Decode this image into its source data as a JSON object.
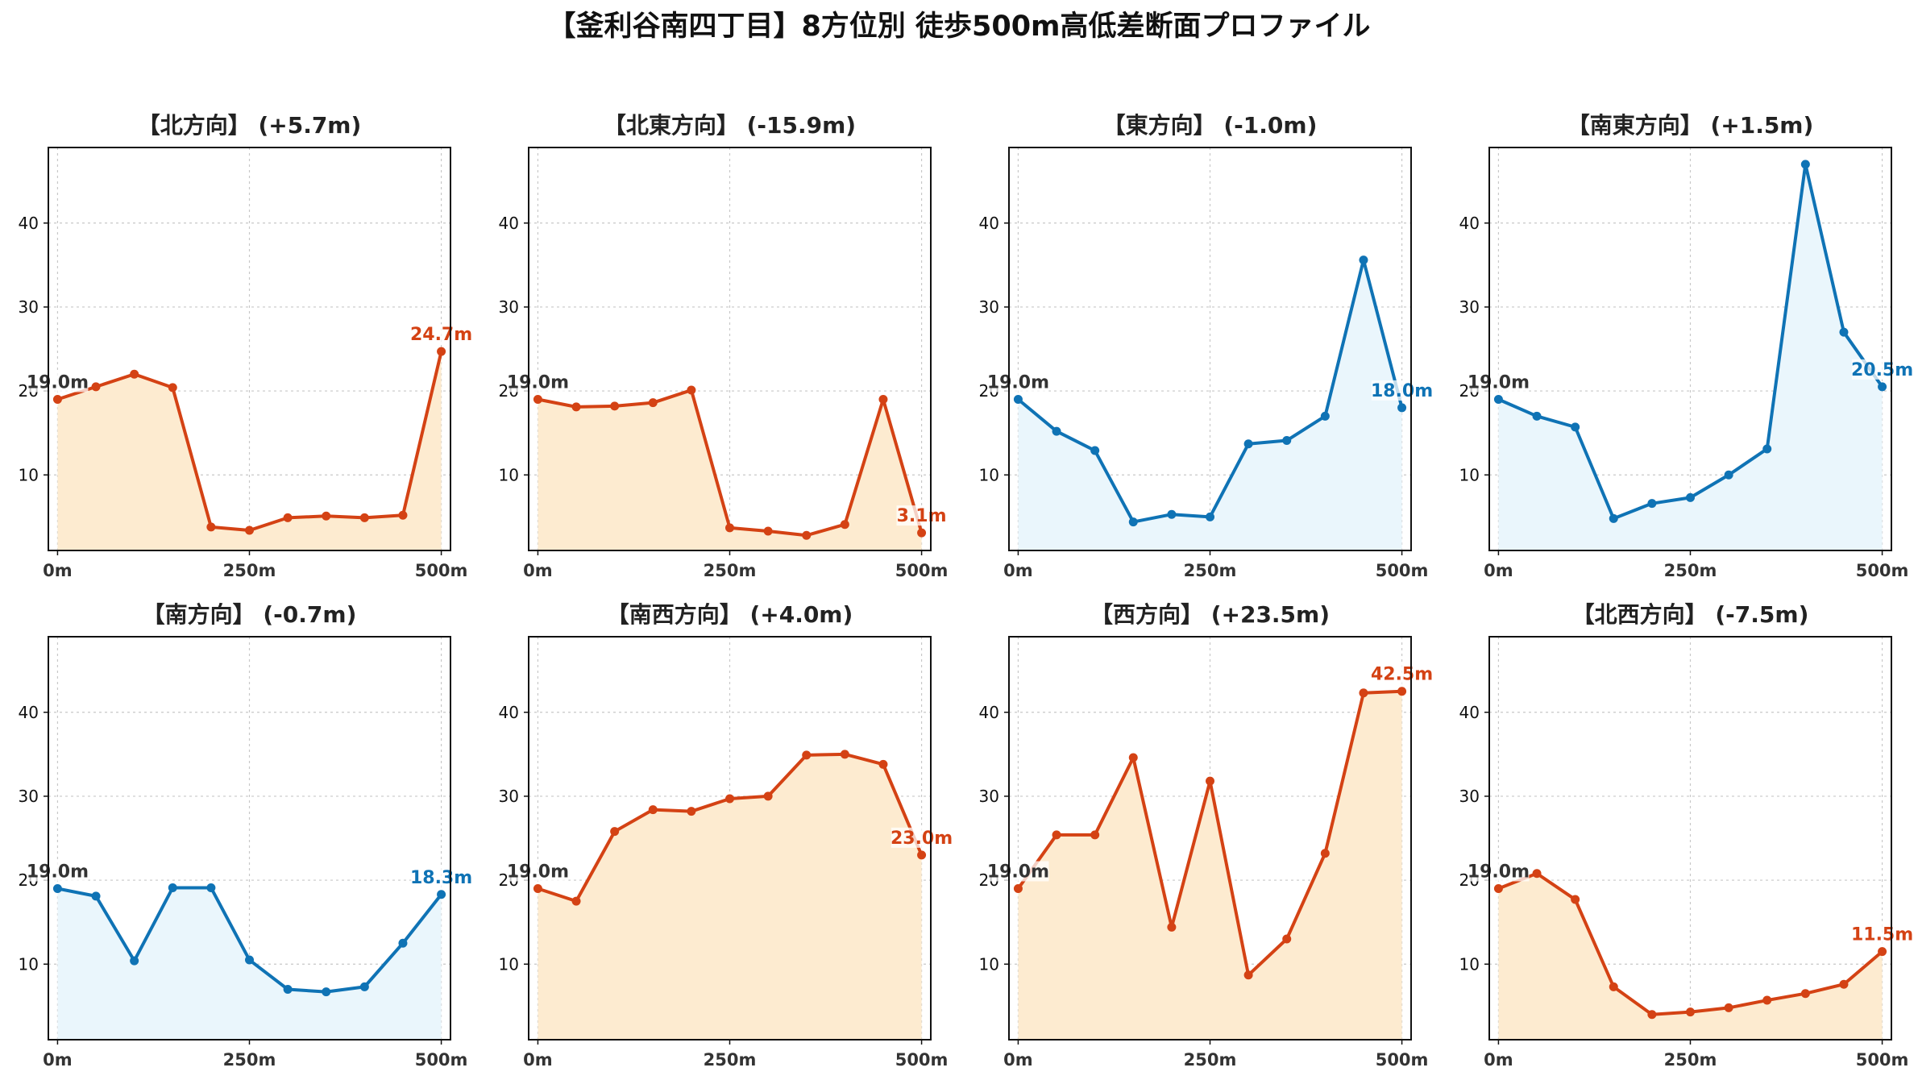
{
  "title": "【釜利谷南四丁目】8方位別 徒歩500m高低差断面プロファイル",
  "colors": {
    "up_line": "#d44214",
    "up_fill": "#fdebd0",
    "down_line": "#0f73b5",
    "down_fill": "#eaf6fc",
    "start_label": "#333333"
  },
  "chart_data": [
    {
      "type": "line",
      "title": "【北方向】 (+5.7m)",
      "trend": "up",
      "x": [
        0,
        50,
        100,
        150,
        200,
        250,
        300,
        350,
        400,
        450,
        500
      ],
      "y": [
        19.0,
        20.5,
        22.0,
        20.4,
        3.8,
        3.4,
        4.9,
        5.1,
        4.9,
        5.2,
        24.7
      ],
      "start_label": "19.0m",
      "end_label": "24.7m",
      "xticks": [
        "0m",
        "250m",
        "500m"
      ],
      "yticks": [
        "10",
        "20",
        "30",
        "40"
      ],
      "xlim": [
        -12,
        512
      ],
      "ylim": [
        1,
        49
      ],
      "grid": true
    },
    {
      "type": "line",
      "title": "【北東方向】 (-15.9m)",
      "trend": "up",
      "x": [
        0,
        50,
        100,
        150,
        200,
        250,
        300,
        350,
        400,
        450,
        500
      ],
      "y": [
        19.0,
        18.1,
        18.2,
        18.6,
        20.1,
        3.7,
        3.3,
        2.8,
        4.1,
        19.0,
        3.1
      ],
      "start_label": "19.0m",
      "end_label": "3.1m",
      "xticks": [
        "0m",
        "250m",
        "500m"
      ],
      "yticks": [
        "10",
        "20",
        "30",
        "40"
      ],
      "xlim": [
        -12,
        512
      ],
      "ylim": [
        1,
        49
      ],
      "grid": true
    },
    {
      "type": "line",
      "title": "【東方向】 (-1.0m)",
      "trend": "down",
      "x": [
        0,
        50,
        100,
        150,
        200,
        250,
        300,
        350,
        400,
        450,
        500
      ],
      "y": [
        19.0,
        15.2,
        12.9,
        4.4,
        5.3,
        5.0,
        13.7,
        14.1,
        17.0,
        35.6,
        18.0
      ],
      "start_label": "19.0m",
      "end_label": "18.0m",
      "xticks": [
        "0m",
        "250m",
        "500m"
      ],
      "yticks": [
        "10",
        "20",
        "30",
        "40"
      ],
      "xlim": [
        -12,
        512
      ],
      "ylim": [
        1,
        49
      ],
      "grid": true
    },
    {
      "type": "line",
      "title": "【南東方向】 (+1.5m)",
      "trend": "down",
      "x": [
        0,
        50,
        100,
        150,
        200,
        250,
        300,
        350,
        400,
        450,
        500
      ],
      "y": [
        19.0,
        17.0,
        15.7,
        4.8,
        6.6,
        7.3,
        10.0,
        13.1,
        47.0,
        27.0,
        20.5
      ],
      "start_label": "19.0m",
      "end_label": "20.5m",
      "xticks": [
        "0m",
        "250m",
        "500m"
      ],
      "yticks": [
        "10",
        "20",
        "30",
        "40"
      ],
      "xlim": [
        -12,
        512
      ],
      "ylim": [
        1,
        49
      ],
      "grid": true
    },
    {
      "type": "line",
      "title": "【南方向】 (-0.7m)",
      "trend": "down",
      "x": [
        0,
        50,
        100,
        150,
        200,
        250,
        300,
        350,
        400,
        450,
        500
      ],
      "y": [
        19.0,
        18.1,
        10.4,
        19.1,
        19.1,
        10.5,
        7.0,
        6.7,
        7.3,
        12.5,
        18.3
      ],
      "start_label": "19.0m",
      "end_label": "18.3m",
      "xticks": [
        "0m",
        "250m",
        "500m"
      ],
      "yticks": [
        "10",
        "20",
        "30",
        "40"
      ],
      "xlim": [
        -12,
        512
      ],
      "ylim": [
        1,
        49
      ],
      "grid": true
    },
    {
      "type": "line",
      "title": "【南西方向】 (+4.0m)",
      "trend": "up",
      "x": [
        0,
        50,
        100,
        150,
        200,
        250,
        300,
        350,
        400,
        450,
        500
      ],
      "y": [
        19.0,
        17.5,
        25.8,
        28.4,
        28.2,
        29.7,
        30.0,
        34.9,
        35.0,
        33.8,
        23.0
      ],
      "start_label": "19.0m",
      "end_label": "23.0m",
      "xticks": [
        "0m",
        "250m",
        "500m"
      ],
      "yticks": [
        "10",
        "20",
        "30",
        "40"
      ],
      "xlim": [
        -12,
        512
      ],
      "ylim": [
        1,
        49
      ],
      "grid": true
    },
    {
      "type": "line",
      "title": "【西方向】 (+23.5m)",
      "trend": "up",
      "x": [
        0,
        50,
        100,
        150,
        200,
        250,
        300,
        350,
        400,
        450,
        500
      ],
      "y": [
        19.0,
        25.4,
        25.4,
        34.6,
        14.4,
        31.8,
        8.7,
        13.0,
        23.2,
        42.3,
        42.5
      ],
      "start_label": "19.0m",
      "end_label": "42.5m",
      "xticks": [
        "0m",
        "250m",
        "500m"
      ],
      "yticks": [
        "10",
        "20",
        "30",
        "40"
      ],
      "xlim": [
        -12,
        512
      ],
      "ylim": [
        1,
        49
      ],
      "grid": true
    },
    {
      "type": "line",
      "title": "【北西方向】 (-7.5m)",
      "trend": "up",
      "x": [
        0,
        50,
        100,
        150,
        200,
        250,
        300,
        350,
        400,
        450,
        500
      ],
      "y": [
        19.0,
        20.8,
        17.7,
        7.3,
        4.0,
        4.3,
        4.8,
        5.7,
        6.5,
        7.6,
        11.5
      ],
      "start_label": "19.0m",
      "end_label": "11.5m",
      "xticks": [
        "0m",
        "250m",
        "500m"
      ],
      "yticks": [
        "10",
        "20",
        "30",
        "40"
      ],
      "xlim": [
        -12,
        512
      ],
      "ylim": [
        1,
        49
      ],
      "grid": true
    }
  ]
}
